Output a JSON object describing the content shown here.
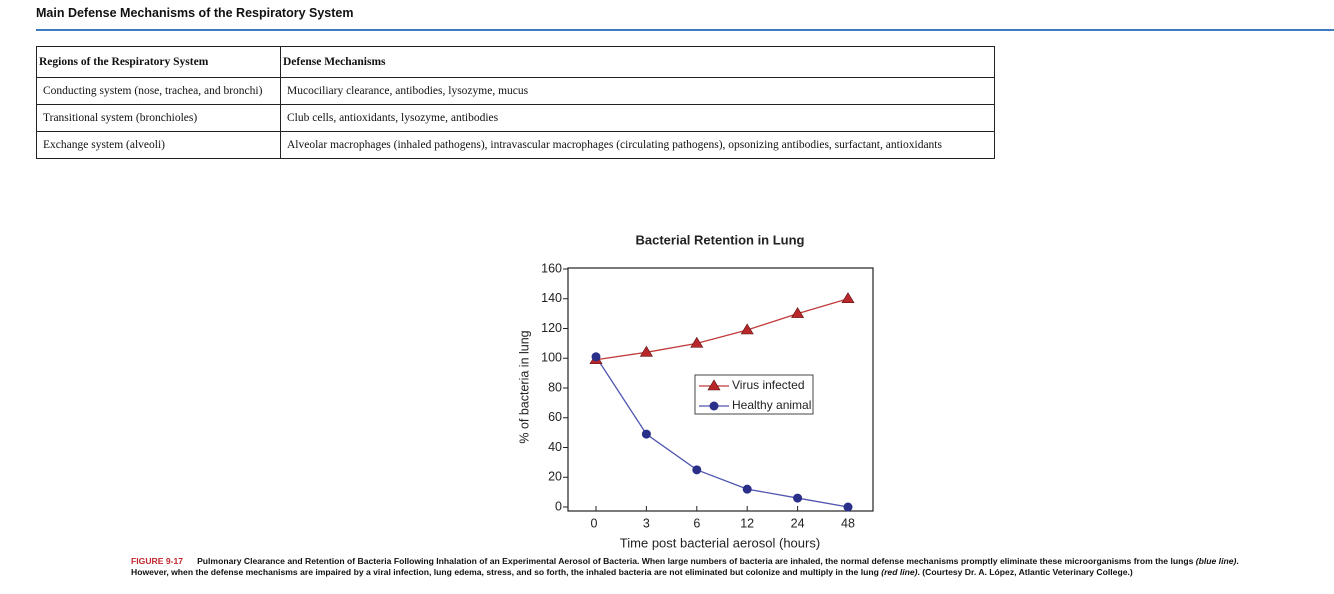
{
  "title": "Main Defense Mechanisms of the Respiratory System",
  "table": {
    "header": [
      "Regions of the Respiratory System",
      "Defense Mechanisms"
    ],
    "rows": [
      [
        "Conducting system (nose, trachea, and bronchi)",
        "Mucociliary clearance, antibodies, lysozyme, mucus"
      ],
      [
        "Transitional system (bronchioles)",
        "Club cells, antioxidants, lysozyme, antibodies"
      ],
      [
        "Exchange system (alveoli)",
        "Alveolar macrophages (inhaled pathogens), intravascular macrophages (circulating pathogens), opsonizing antibodies, surfactant, antioxidants"
      ]
    ]
  },
  "chart_data": {
    "type": "line",
    "title": "Bacterial Retention in Lung",
    "x_label": "Time post bacterial aerosol (hours)",
    "y_label": "% of bacteria in lung",
    "categories": [
      "0",
      "3",
      "6",
      "12",
      "24",
      "48"
    ],
    "series": [
      {
        "name": "Virus infected",
        "color": "#b8282a",
        "marker": "triangle",
        "values": [
          99,
          104,
          110,
          119,
          130,
          140
        ]
      },
      {
        "name": "Healthy animal",
        "color": "#2a2f8a",
        "marker": "circle",
        "values": [
          101,
          49,
          25,
          12,
          6,
          0
        ]
      }
    ],
    "ylim": [
      0,
      160
    ],
    "yticks": [
      0,
      20,
      40,
      60,
      80,
      100,
      120,
      140,
      160
    ],
    "grid": false
  },
  "caption": {
    "label": "FIGURE 9-17",
    "parts": [
      "Pulmonary Clearance and Retention of Bacteria Following Inhalation of an Experimental Aerosol of Bacteria.  When large numbers of bacteria are inhaled, the normal defense mechanisms promptly eliminate these microorganisms from the lungs ",
      "(blue line)",
      ". However, when the defense mechanisms are impaired by a viral infection, lung edema, stress, and so forth, the inhaled bacteria are not eliminated but colonize and multiply in the lung ",
      "(red line)",
      ".  (Courtesy Dr. A. López, Atlantic Veterinary College.)"
    ]
  }
}
